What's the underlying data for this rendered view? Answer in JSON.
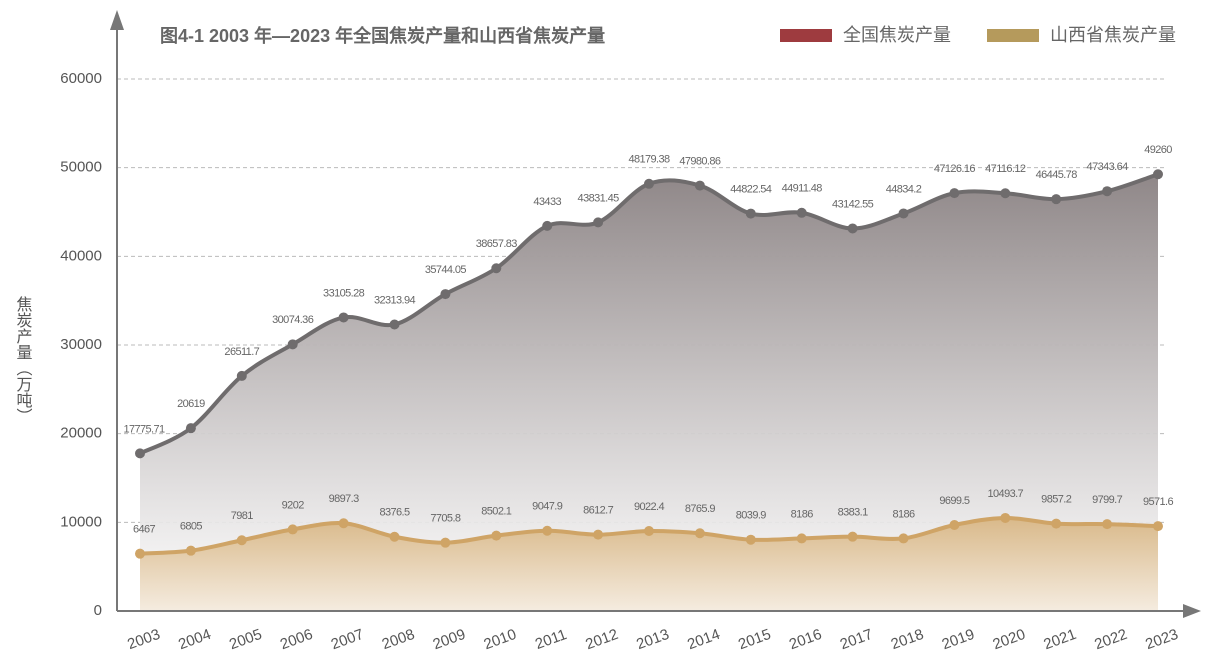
{
  "chart_data": {
    "type": "line",
    "title": "图4-1 2003 年—2023 年全国焦炭产量和山西省焦炭产量",
    "y_label": "焦炭产量（万吨）",
    "categories": [
      "2003",
      "2004",
      "2005",
      "2006",
      "2007",
      "2008",
      "2009",
      "2010",
      "2011",
      "2012",
      "2013",
      "2014",
      "2015",
      "2016",
      "2017",
      "2018",
      "2019",
      "2020",
      "2021",
      "2022",
      "2023"
    ],
    "series": [
      {
        "name": "全国焦炭产量",
        "color": "#9e3b3f",
        "line_color": "#6f6c6d",
        "values": [
          17775.71,
          20619,
          26511.7,
          30074.36,
          33105.28,
          32313.94,
          35744.05,
          38657.83,
          43433,
          43831.45,
          48179.38,
          47980.86,
          44822.54,
          44911.48,
          43142.55,
          44834.2,
          47126.16,
          47116.12,
          46445.78,
          47343.64,
          49260
        ]
      },
      {
        "name": "山西省焦炭产量",
        "color": "#b59a5c",
        "line_color": "#cfa466",
        "values": [
          6467,
          6805,
          7981,
          9202,
          9897.3,
          8376.5,
          7705.8,
          8502.1,
          9047.9,
          8612.7,
          9022.4,
          8765.9,
          8039.9,
          8186,
          8383.1,
          8186,
          9699.5,
          10493.7,
          9857.2,
          9799.7,
          9571.6
        ]
      }
    ],
    "ylim": [
      0,
      60000
    ],
    "yticks": [
      0,
      10000,
      20000,
      30000,
      40000,
      50000,
      60000
    ],
    "grid": true
  }
}
